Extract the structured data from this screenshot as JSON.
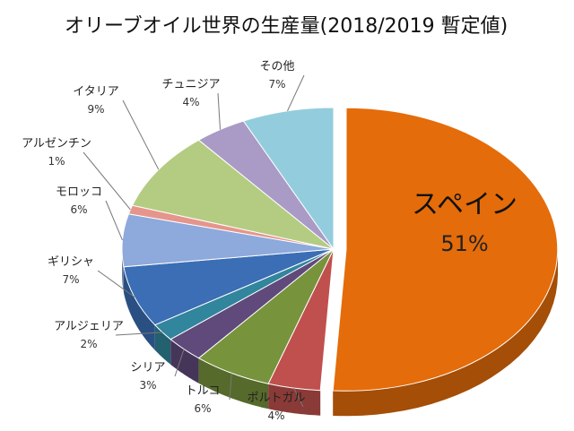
{
  "chart_data": {
    "type": "pie",
    "title": "オリーブオイル世界の生産量(2018/2019 暫定値)",
    "categories": [
      "スペイン",
      "ポルトガル",
      "トルコ",
      "シリア",
      "アルジェリア",
      "ギリシャ",
      "モロッコ",
      "アルゼンチン",
      "イタリア",
      "チュニジア",
      "その他"
    ],
    "values": [
      51,
      4,
      6,
      3,
      2,
      7,
      6,
      1,
      9,
      4,
      7
    ],
    "value_labels": [
      "51%",
      "4%",
      "6%",
      "3%",
      "2%",
      "7%",
      "6%",
      "1%",
      "9%",
      "4%",
      "7%"
    ],
    "exploded": "スペイン",
    "colors": [
      "#E46C0A",
      "#C0504D",
      "#77933C",
      "#604A7B",
      "#31859C",
      "#3B6EB5",
      "#8EA9DB",
      "#E6958C",
      "#B4CC82",
      "#A99BC6",
      "#93CDDD"
    ]
  }
}
